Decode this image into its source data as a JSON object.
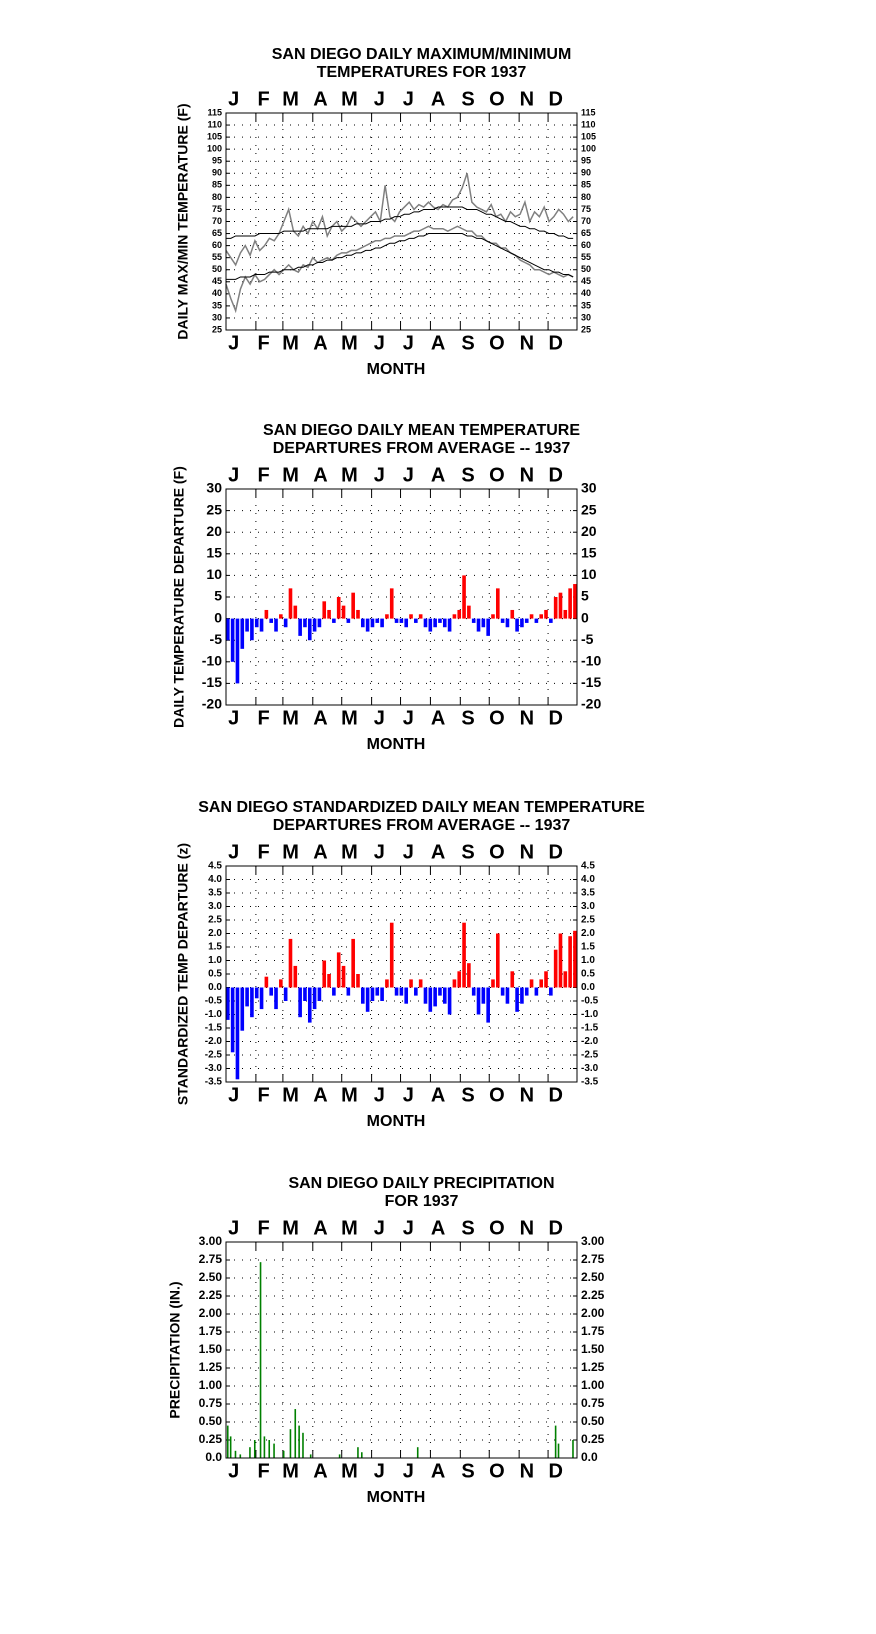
{
  "chart_data": [
    {
      "type": "line",
      "title": [
        "SAN DIEGO DAILY MAXIMUM/MINIMUM",
        "TEMPERATURES FOR 1937"
      ],
      "x_label": "MONTH",
      "y_label": "DAILY MAX/MIN TEMPERATURE (F)",
      "xlim": [
        1,
        365
      ],
      "xticks": [
        {
          "value": 1,
          "label": "J"
        },
        {
          "value": 32,
          "label": "F"
        },
        {
          "value": 60,
          "label": "M"
        },
        {
          "value": 91,
          "label": "A"
        },
        {
          "value": 121,
          "label": "M"
        },
        {
          "value": 152,
          "label": "J"
        },
        {
          "value": 182,
          "label": "J"
        },
        {
          "value": 213,
          "label": "A"
        },
        {
          "value": 244,
          "label": "S"
        },
        {
          "value": 274,
          "label": "O"
        },
        {
          "value": 305,
          "label": "N"
        },
        {
          "value": 335,
          "label": "D"
        }
      ],
      "ylim": [
        25,
        115
      ],
      "yticks": [
        25,
        30,
        35,
        40,
        45,
        50,
        55,
        60,
        65,
        70,
        75,
        80,
        85,
        90,
        95,
        100,
        105,
        110,
        115
      ],
      "grid": true,
      "x": [
        1,
        6,
        11,
        16,
        21,
        26,
        31,
        36,
        41,
        46,
        51,
        56,
        61,
        66,
        71,
        76,
        81,
        86,
        91,
        96,
        101,
        106,
        111,
        116,
        121,
        126,
        131,
        136,
        141,
        146,
        151,
        156,
        161,
        166,
        171,
        176,
        181,
        186,
        191,
        196,
        201,
        206,
        211,
        216,
        221,
        226,
        231,
        236,
        241,
        246,
        251,
        256,
        261,
        266,
        271,
        276,
        281,
        286,
        291,
        296,
        301,
        306,
        311,
        316,
        321,
        326,
        331,
        336,
        341,
        346,
        351,
        356,
        361
      ],
      "series": [
        {
          "color": "#808080",
          "values": [
            58,
            55,
            52,
            57,
            60,
            56,
            62,
            58,
            60,
            63,
            62,
            65,
            70,
            75,
            66,
            64,
            68,
            65,
            70,
            67,
            72,
            64,
            68,
            70,
            66,
            68,
            72,
            70,
            68,
            70,
            72,
            74,
            70,
            85,
            72,
            70,
            74,
            76,
            78,
            75,
            77,
            76,
            78,
            76,
            75,
            77,
            76,
            79,
            80,
            84,
            90,
            78,
            76,
            75,
            74,
            77,
            72,
            73,
            70,
            74,
            72,
            73,
            78,
            70,
            74,
            72,
            76,
            70,
            72,
            75,
            73,
            70,
            72
          ]
        },
        {
          "color": "#808080",
          "values": [
            44,
            38,
            33,
            42,
            47,
            44,
            48,
            45,
            46,
            48,
            50,
            48,
            50,
            52,
            50,
            49,
            52,
            51,
            55,
            53,
            54,
            55,
            54,
            56,
            57,
            57,
            58,
            58,
            59,
            60,
            61,
            62,
            62,
            63,
            63,
            64,
            64,
            64,
            65,
            66,
            66,
            67,
            68,
            67,
            67,
            67,
            66,
            67,
            68,
            67,
            66,
            66,
            64,
            64,
            62,
            61,
            61,
            59,
            59,
            57,
            56,
            54,
            53,
            52,
            50,
            50,
            49,
            48,
            49,
            48,
            47,
            48,
            47
          ]
        },
        {
          "color": "#000000",
          "values": [
            63,
            63,
            64,
            64,
            64,
            64,
            64,
            65,
            65,
            65,
            65,
            65,
            66,
            66,
            66,
            66,
            66,
            67,
            67,
            67,
            67,
            67,
            68,
            68,
            68,
            68,
            68,
            69,
            69,
            69,
            70,
            70,
            70,
            71,
            71,
            72,
            72,
            73,
            73,
            74,
            74,
            75,
            75,
            75,
            76,
            76,
            76,
            76,
            76,
            76,
            75,
            75,
            75,
            74,
            73,
            73,
            72,
            71,
            70,
            70,
            69,
            68,
            68,
            67,
            67,
            66,
            66,
            65,
            65,
            64,
            64,
            63,
            63
          ]
        },
        {
          "color": "#000000",
          "values": [
            46,
            46,
            46,
            47,
            47,
            47,
            48,
            48,
            48,
            49,
            49,
            49,
            50,
            50,
            50,
            51,
            51,
            52,
            52,
            53,
            53,
            54,
            54,
            55,
            55,
            56,
            56,
            57,
            57,
            58,
            58,
            59,
            59,
            60,
            61,
            61,
            62,
            62,
            63,
            63,
            64,
            64,
            65,
            65,
            65,
            65,
            65,
            65,
            65,
            65,
            64,
            64,
            63,
            63,
            62,
            61,
            60,
            59,
            58,
            57,
            56,
            55,
            54,
            53,
            52,
            51,
            50,
            50,
            49,
            49,
            48,
            48,
            47
          ]
        }
      ]
    },
    {
      "type": "bar",
      "title": [
        "SAN DIEGO DAILY MEAN TEMPERATURE",
        "DEPARTURES FROM AVERAGE -- 1937"
      ],
      "x_label": "MONTH",
      "y_label": "DAILY TEMPERATURE DEPARTURE (F)",
      "xlim": [
        1,
        365
      ],
      "xticks": [
        {
          "value": 1,
          "label": "J"
        },
        {
          "value": 32,
          "label": "F"
        },
        {
          "value": 60,
          "label": "M"
        },
        {
          "value": 91,
          "label": "A"
        },
        {
          "value": 121,
          "label": "M"
        },
        {
          "value": 152,
          "label": "J"
        },
        {
          "value": 182,
          "label": "J"
        },
        {
          "value": 213,
          "label": "A"
        },
        {
          "value": 244,
          "label": "S"
        },
        {
          "value": 274,
          "label": "O"
        },
        {
          "value": 305,
          "label": "N"
        },
        {
          "value": 335,
          "label": "D"
        }
      ],
      "ylim": [
        -20,
        30
      ],
      "yticks": [
        -20,
        -15,
        -10,
        -5,
        0,
        5,
        10,
        15,
        20,
        25,
        30
      ],
      "grid": true,
      "colors": {
        "positive": "#ff0000",
        "negative": "#0000ff"
      },
      "x": [
        1,
        6,
        11,
        16,
        21,
        26,
        31,
        36,
        41,
        46,
        51,
        56,
        61,
        66,
        71,
        76,
        81,
        86,
        91,
        96,
        101,
        106,
        111,
        116,
        121,
        126,
        131,
        136,
        141,
        146,
        151,
        156,
        161,
        166,
        171,
        176,
        181,
        186,
        191,
        196,
        201,
        206,
        211,
        216,
        221,
        226,
        231,
        236,
        241,
        246,
        251,
        256,
        261,
        266,
        271,
        276,
        281,
        286,
        291,
        296,
        301,
        306,
        311,
        316,
        321,
        326,
        331,
        336,
        341,
        346,
        351,
        356,
        361
      ],
      "values": [
        -5,
        -10,
        -15,
        -7,
        -3,
        -5,
        -2,
        -3,
        2,
        -1,
        -3,
        1,
        -2,
        7,
        3,
        -4,
        -2,
        -5,
        -3,
        -2,
        4,
        2,
        -1,
        5,
        3,
        -1,
        6,
        2,
        -2,
        -3,
        -2,
        -1,
        -2,
        1,
        7,
        -1,
        -1,
        -2,
        1,
        -1,
        1,
        -2,
        -3,
        -2,
        -1,
        -2,
        -3,
        1,
        2,
        10,
        3,
        -1,
        -3,
        -2,
        -4,
        1,
        7,
        -1,
        -2,
        2,
        -3,
        -2,
        -1,
        1,
        -1,
        1,
        2,
        -1,
        5,
        6,
        2,
        7,
        8
      ]
    },
    {
      "type": "bar",
      "title": [
        "SAN DIEGO STANDARDIZED DAILY MEAN TEMPERATURE",
        "DEPARTURES FROM AVERAGE -- 1937"
      ],
      "x_label": "MONTH",
      "y_label": "STANDARDIZED TEMP DEPARTURE (z)",
      "xlim": [
        1,
        365
      ],
      "xticks": [
        {
          "value": 1,
          "label": "J"
        },
        {
          "value": 32,
          "label": "F"
        },
        {
          "value": 60,
          "label": "M"
        },
        {
          "value": 91,
          "label": "A"
        },
        {
          "value": 121,
          "label": "M"
        },
        {
          "value": 152,
          "label": "J"
        },
        {
          "value": 182,
          "label": "J"
        },
        {
          "value": 213,
          "label": "A"
        },
        {
          "value": 244,
          "label": "S"
        },
        {
          "value": 274,
          "label": "O"
        },
        {
          "value": 305,
          "label": "N"
        },
        {
          "value": 335,
          "label": "D"
        }
      ],
      "ylim": [
        -3.5,
        4.5
      ],
      "yticks": [
        -3.5,
        {
          "value": -3,
          "label": "-3.0"
        },
        -2.5,
        {
          "value": -2,
          "label": "-2.0"
        },
        -1.5,
        {
          "value": -1,
          "label": "-1.0"
        },
        -0.5,
        {
          "value": 0,
          "label": "0.0"
        },
        0.5,
        {
          "value": 1,
          "label": "1.0"
        },
        1.5,
        {
          "value": 2,
          "label": "2.0"
        },
        2.5,
        {
          "value": 3,
          "label": "3.0"
        },
        3.5,
        {
          "value": 4,
          "label": "4.0"
        },
        4.5
      ],
      "grid": true,
      "colors": {
        "positive": "#ff0000",
        "negative": "#0000ff"
      },
      "x": [
        1,
        6,
        11,
        16,
        21,
        26,
        31,
        36,
        41,
        46,
        51,
        56,
        61,
        66,
        71,
        76,
        81,
        86,
        91,
        96,
        101,
        106,
        111,
        116,
        121,
        126,
        131,
        136,
        141,
        146,
        151,
        156,
        161,
        166,
        171,
        176,
        181,
        186,
        191,
        196,
        201,
        206,
        211,
        216,
        221,
        226,
        231,
        236,
        241,
        246,
        251,
        256,
        261,
        266,
        271,
        276,
        281,
        286,
        291,
        296,
        301,
        306,
        311,
        316,
        321,
        326,
        331,
        336,
        341,
        346,
        351,
        356,
        361
      ],
      "values": [
        -1.2,
        -2.4,
        -3.4,
        -1.6,
        -0.7,
        -1.1,
        -0.4,
        -0.8,
        0.4,
        -0.3,
        -0.8,
        0.3,
        -0.5,
        1.8,
        0.8,
        -1.1,
        -0.5,
        -1.3,
        -0.8,
        -0.5,
        1.0,
        0.5,
        -0.3,
        1.3,
        0.8,
        -0.3,
        1.8,
        0.5,
        -0.6,
        -0.9,
        -0.5,
        -0.3,
        -0.5,
        0.3,
        2.4,
        -0.3,
        -0.3,
        -0.6,
        0.3,
        -0.3,
        0.3,
        -0.6,
        -0.9,
        -0.7,
        -0.3,
        -0.6,
        -1.0,
        0.3,
        0.6,
        2.4,
        0.9,
        -0.3,
        -1.0,
        -0.6,
        -1.3,
        0.3,
        2.0,
        -0.3,
        -0.6,
        0.6,
        -0.9,
        -0.6,
        -0.3,
        0.3,
        -0.3,
        0.3,
        0.6,
        -0.3,
        1.4,
        2.0,
        0.6,
        1.9,
        2.1
      ]
    },
    {
      "type": "bar",
      "title": [
        "SAN DIEGO DAILY PRECIPITATION",
        "FOR 1937"
      ],
      "x_label": "MONTH",
      "y_label": "PRECIPITATION (IN.)",
      "xlim": [
        1,
        365
      ],
      "xticks": [
        {
          "value": 1,
          "label": "J"
        },
        {
          "value": 32,
          "label": "F"
        },
        {
          "value": 60,
          "label": "M"
        },
        {
          "value": 91,
          "label": "A"
        },
        {
          "value": 121,
          "label": "M"
        },
        {
          "value": 152,
          "label": "J"
        },
        {
          "value": 182,
          "label": "J"
        },
        {
          "value": 213,
          "label": "A"
        },
        {
          "value": 244,
          "label": "S"
        },
        {
          "value": 274,
          "label": "O"
        },
        {
          "value": 305,
          "label": "N"
        },
        {
          "value": 335,
          "label": "D"
        }
      ],
      "ylim": [
        0,
        3
      ],
      "yticks": [
        {
          "value": 0,
          "label": "0.0"
        },
        {
          "value": 0.25,
          "label": "0.25"
        },
        {
          "value": 0.5,
          "label": "0.50"
        },
        {
          "value": 0.75,
          "label": "0.75"
        },
        {
          "value": 1,
          "label": "1.00"
        },
        {
          "value": 1.25,
          "label": "1.25"
        },
        {
          "value": 1.5,
          "label": "1.50"
        },
        {
          "value": 1.75,
          "label": "1.75"
        },
        {
          "value": 2,
          "label": "2.00"
        },
        {
          "value": 2.25,
          "label": "2.25"
        },
        {
          "value": 2.5,
          "label": "2.50"
        },
        {
          "value": 2.75,
          "label": "2.75"
        },
        {
          "value": 3,
          "label": "3.00"
        }
      ],
      "grid": true,
      "color": "#008000",
      "x": [
        2,
        5,
        10,
        15,
        25,
        30,
        36,
        40,
        45,
        50,
        60,
        67,
        72,
        76,
        80,
        88,
        118,
        137,
        141,
        199,
        342,
        345,
        360
      ],
      "values": [
        0.45,
        0.3,
        0.1,
        0.05,
        0.15,
        0.25,
        2.72,
        0.3,
        0.25,
        0.2,
        0.1,
        0.4,
        0.68,
        0.45,
        0.35,
        0.05,
        0.05,
        0.15,
        0.08,
        0.15,
        0.45,
        0.2,
        0.25
      ]
    }
  ]
}
